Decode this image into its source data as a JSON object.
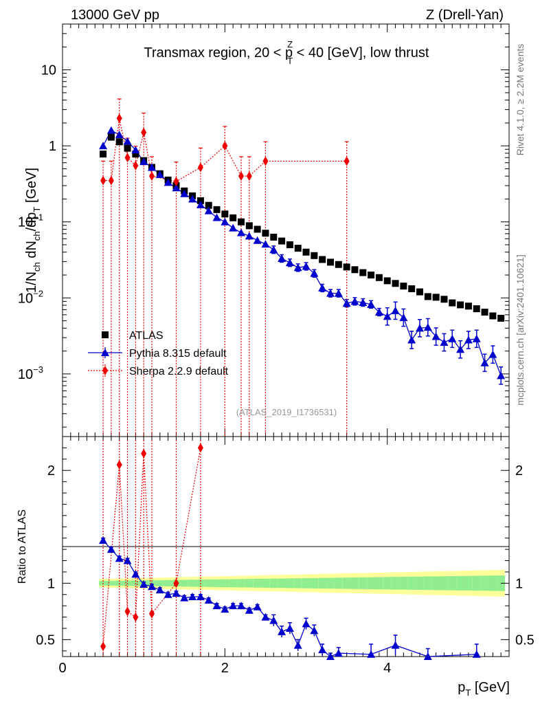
{
  "header": {
    "energy": "13000 GeV pp",
    "process": "Z (Drell-Yan)",
    "title": "Transmax region, 20 < p",
    "title_sup": "Z",
    "title_sub": "T",
    "title_tail": " < 40 [GeV], low thrust",
    "rivet_label": "Rivet 4.1.0, ≥ 2.2M events",
    "mcplots_label": "mcplots.cern.ch [arXiv:2401.10621]",
    "analysis_id": "(ATLAS_2019_I1736531)"
  },
  "colors": {
    "atlas": "#000000",
    "pythia": "#0000cc",
    "sherpa": "#ee0000",
    "band_inner": "#90ee90",
    "band_outer": "#ffff99"
  },
  "chart_data": [
    {
      "type": "scatter",
      "panel": "main",
      "ylabel": "1/N_ch dN_ch/dp_T [GeV]",
      "yscale": "log",
      "xlim": [
        0,
        5.5
      ],
      "ylim": [
        0.00015,
        40
      ],
      "ytick_labels": [
        "10^-3",
        "10^-2",
        "10^-1",
        "1",
        "10"
      ],
      "legend": [
        "ATLAS",
        "Pythia 8.315 default",
        "Sherpa 2.2.9 default"
      ],
      "series": [
        {
          "name": "ATLAS",
          "marker": "square",
          "x": [
            0.5,
            0.6,
            0.7,
            0.8,
            0.9,
            1.0,
            1.1,
            1.2,
            1.3,
            1.4,
            1.5,
            1.6,
            1.7,
            1.8,
            1.9,
            2.0,
            2.1,
            2.2,
            2.3,
            2.4,
            2.5,
            2.6,
            2.7,
            2.8,
            2.9,
            3.0,
            3.1,
            3.2,
            3.3,
            3.4,
            3.5,
            3.6,
            3.7,
            3.8,
            3.9,
            4.0,
            4.1,
            4.2,
            4.3,
            4.4,
            4.5,
            4.6,
            4.7,
            4.8,
            4.9,
            5.0,
            5.1,
            5.2,
            5.3,
            5.4
          ],
          "y": [
            0.78,
            1.3,
            1.13,
            0.93,
            0.78,
            0.64,
            0.52,
            0.43,
            0.355,
            0.3,
            0.255,
            0.22,
            0.19,
            0.165,
            0.145,
            0.127,
            0.113,
            0.1,
            0.089,
            0.08,
            0.071,
            0.063,
            0.056,
            0.05,
            0.045,
            0.04,
            0.036,
            0.032,
            0.0295,
            0.0275,
            0.0255,
            0.0235,
            0.0215,
            0.02,
            0.0185,
            0.0168,
            0.0155,
            0.0143,
            0.0132,
            0.012,
            0.0104,
            0.0102,
            0.0096,
            0.0086,
            0.0081,
            0.0078,
            0.0072,
            0.0065,
            0.0058,
            0.0054
          ]
        },
        {
          "name": "Pythia 8.315 default",
          "marker": "triangle",
          "x": [
            0.5,
            0.6,
            0.7,
            0.8,
            0.9,
            1.0,
            1.1,
            1.2,
            1.3,
            1.4,
            1.5,
            1.6,
            1.7,
            1.8,
            1.9,
            2.0,
            2.1,
            2.2,
            2.3,
            2.4,
            2.5,
            2.6,
            2.7,
            2.8,
            2.9,
            3.0,
            3.1,
            3.2,
            3.3,
            3.4,
            3.5,
            3.6,
            3.7,
            3.8,
            3.9,
            4.0,
            4.1,
            4.2,
            4.3,
            4.4,
            4.5,
            4.6,
            4.7,
            4.8,
            4.9,
            5.0,
            5.1,
            5.2,
            5.3,
            5.4
          ],
          "y": [
            1.0,
            1.6,
            1.4,
            1.15,
            0.88,
            0.62,
            0.52,
            0.42,
            0.33,
            0.28,
            0.235,
            0.2,
            0.168,
            0.14,
            0.114,
            0.1,
            0.083,
            0.072,
            0.065,
            0.057,
            0.051,
            0.043,
            0.033,
            0.029,
            0.025,
            0.026,
            0.021,
            0.0135,
            0.0115,
            0.0115,
            0.0085,
            0.009,
            0.0087,
            0.0082,
            0.0065,
            0.0057,
            0.0068,
            0.0055,
            0.0028,
            0.004,
            0.0041,
            0.0031,
            0.0026,
            0.0029,
            0.0021,
            0.0028,
            0.0029,
            0.0014,
            0.0018,
            0.00095
          ]
        },
        {
          "name": "Sherpa 2.2.9 default",
          "marker": "diamond",
          "x": [
            0.5,
            0.6,
            0.7,
            0.8,
            0.9,
            1.0,
            1.1,
            1.4,
            1.7,
            2.0,
            2.2,
            2.3,
            2.5,
            3.5
          ],
          "y": [
            0.35,
            0.35,
            2.3,
            0.7,
            0.55,
            1.5,
            0.4,
            0.34,
            0.52,
            1.0,
            0.4,
            0.4,
            0.63,
            0.63
          ]
        }
      ]
    },
    {
      "type": "scatter",
      "panel": "ratio",
      "xlabel": "p_T [GeV]",
      "ylabel": "Ratio to ATLAS",
      "xlim": [
        0,
        5.5
      ],
      "ylim": [
        0.35,
        2.3
      ],
      "xtick_labels": [
        "0",
        "2",
        "4"
      ],
      "ytick_labels": [
        "0.5",
        "1",
        "2"
      ],
      "series": [
        {
          "name": "Pythia 8.315 default",
          "x": [
            0.5,
            0.6,
            0.7,
            0.8,
            0.9,
            1.0,
            1.1,
            1.2,
            1.3,
            1.4,
            1.5,
            1.6,
            1.7,
            1.8,
            1.9,
            2.0,
            2.1,
            2.2,
            2.3,
            2.4,
            2.5,
            2.6,
            2.7,
            2.8,
            2.9,
            3.0,
            3.1,
            3.2,
            3.3,
            3.4,
            3.8,
            4.1,
            4.5,
            5.1
          ],
          "y": [
            1.38,
            1.3,
            1.22,
            1.2,
            1.08,
            0.99,
            0.97,
            0.94,
            0.9,
            0.91,
            0.87,
            0.88,
            0.88,
            0.85,
            0.8,
            0.77,
            0.8,
            0.8,
            0.76,
            0.79,
            0.7,
            0.67,
            0.57,
            0.6,
            0.45,
            0.64,
            0.58,
            0.41,
            0.33,
            0.38,
            0.37,
            0.45,
            0.33,
            0.37
          ]
        },
        {
          "name": "Sherpa 2.2.9 default",
          "x": [
            0.5,
            0.7,
            0.8,
            0.9,
            1.0,
            1.1,
            1.4,
            1.7
          ],
          "y": [
            0.44,
            2.05,
            0.75,
            0.7,
            2.15,
            0.73,
            1.0,
            2.2
          ]
        }
      ]
    }
  ]
}
